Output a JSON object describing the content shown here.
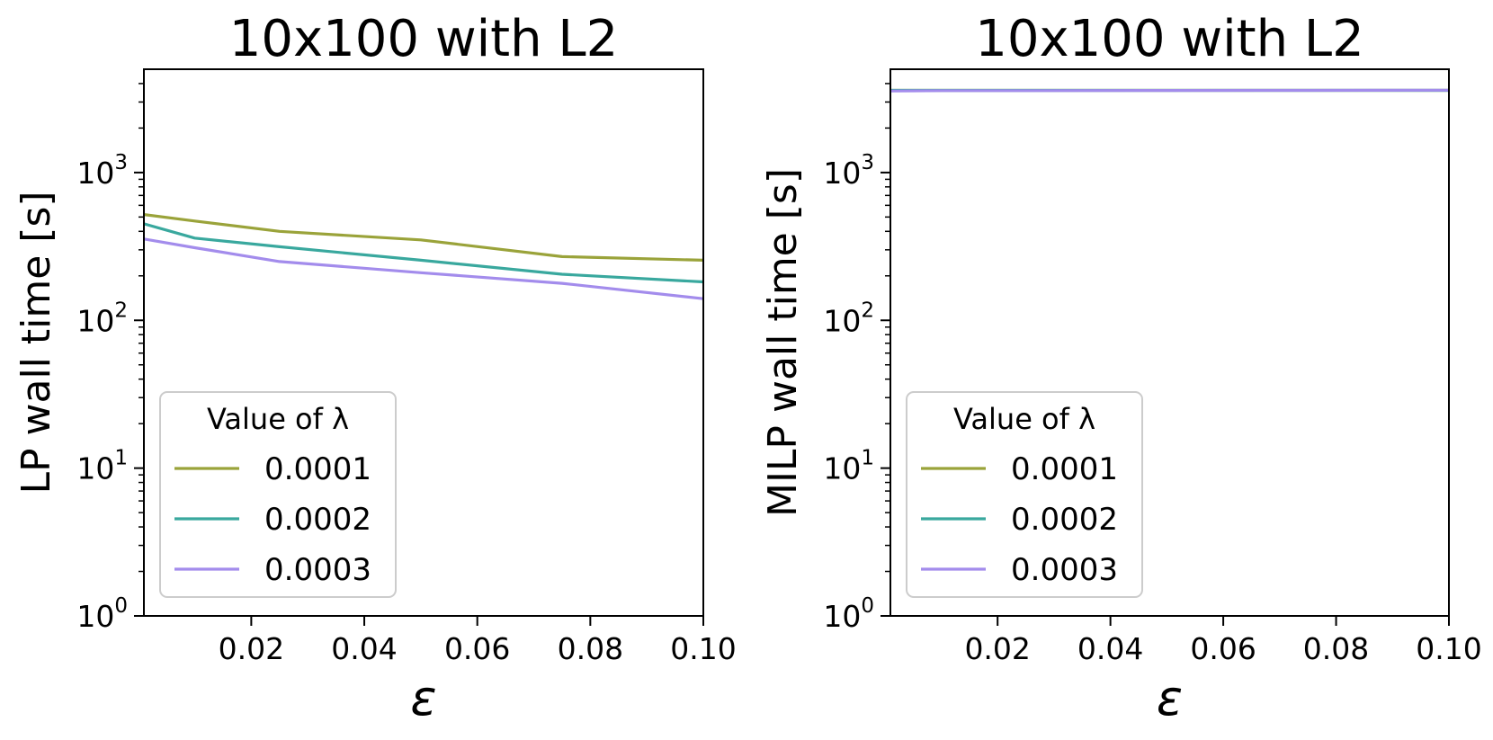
{
  "chart_data": [
    {
      "type": "line",
      "title": "10x100 with L2",
      "xlabel": "ε",
      "ylabel": "LP wall time [s]",
      "yscale": "log",
      "xlim": [
        0.001,
        0.1
      ],
      "ylim": [
        1,
        5000
      ],
      "xticks": [
        0.02,
        0.04,
        0.06,
        0.08,
        0.1
      ],
      "xtick_labels": [
        "0.02",
        "0.04",
        "0.06",
        "0.08",
        "0.10"
      ],
      "yticks": [
        1,
        10,
        100,
        1000
      ],
      "ytick_labels": [
        {
          "base": "10",
          "exp": "0"
        },
        {
          "base": "10",
          "exp": "1"
        },
        {
          "base": "10",
          "exp": "2"
        },
        {
          "base": "10",
          "exp": "3"
        }
      ],
      "legend": {
        "title": "Value of λ",
        "placement": "lower-left"
      },
      "grid": false,
      "series": [
        {
          "name": "0.0001",
          "color": "#9aa33a",
          "x": [
            0.001,
            0.01,
            0.025,
            0.05,
            0.075,
            0.1
          ],
          "y": [
            520,
            470,
            400,
            350,
            270,
            255
          ]
        },
        {
          "name": "0.0002",
          "color": "#39a89e",
          "x": [
            0.001,
            0.01,
            0.025,
            0.05,
            0.075,
            0.1
          ],
          "y": [
            450,
            360,
            315,
            255,
            205,
            182
          ]
        },
        {
          "name": "0.0003",
          "color": "#a38cec",
          "x": [
            0.001,
            0.01,
            0.025,
            0.05,
            0.075,
            0.1
          ],
          "y": [
            355,
            310,
            250,
            210,
            178,
            140
          ]
        }
      ]
    },
    {
      "type": "line",
      "title": "10x100 with L2",
      "xlabel": "ε",
      "ylabel": "MILP wall time [s]",
      "yscale": "log",
      "xlim": [
        0.001,
        0.1
      ],
      "ylim": [
        1,
        5000
      ],
      "xticks": [
        0.02,
        0.04,
        0.06,
        0.08,
        0.1
      ],
      "xtick_labels": [
        "0.02",
        "0.04",
        "0.06",
        "0.08",
        "0.10"
      ],
      "yticks": [
        1,
        10,
        100,
        1000
      ],
      "ytick_labels": [
        {
          "base": "10",
          "exp": "0"
        },
        {
          "base": "10",
          "exp": "1"
        },
        {
          "base": "10",
          "exp": "2"
        },
        {
          "base": "10",
          "exp": "3"
        }
      ],
      "legend": {
        "title": "Value of λ",
        "placement": "lower-left"
      },
      "grid": false,
      "series": [
        {
          "name": "0.0001",
          "color": "#9aa33a",
          "x": [
            0.001,
            0.01,
            0.025,
            0.05,
            0.075,
            0.1
          ],
          "y": [
            3600,
            3600,
            3600,
            3600,
            3600,
            3600
          ]
        },
        {
          "name": "0.0002",
          "color": "#39a89e",
          "x": [
            0.001,
            0.01,
            0.025,
            0.05,
            0.075,
            0.1
          ],
          "y": [
            3600,
            3600,
            3600,
            3600,
            3600,
            3600
          ]
        },
        {
          "name": "0.0003",
          "color": "#a38cec",
          "x": [
            0.001,
            0.01,
            0.025,
            0.05,
            0.075,
            0.1
          ],
          "y": [
            3560,
            3580,
            3580,
            3590,
            3600,
            3610
          ]
        }
      ]
    }
  ]
}
